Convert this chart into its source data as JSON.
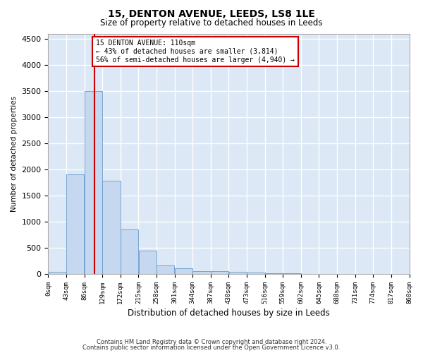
{
  "title1": "15, DENTON AVENUE, LEEDS, LS8 1LE",
  "title2": "Size of property relative to detached houses in Leeds",
  "xlabel": "Distribution of detached houses by size in Leeds",
  "ylabel": "Number of detached properties",
  "footer1": "Contains HM Land Registry data © Crown copyright and database right 2024.",
  "footer2": "Contains public sector information licensed under the Open Government Licence v3.0.",
  "property_label": "15 DENTON AVENUE: 110sqm",
  "pct_smaller": "43% of detached houses are smaller (3,814)",
  "pct_larger": "56% of semi-detached houses are larger (4,940)",
  "vline_color": "#cc0000",
  "bar_color": "#c5d8f0",
  "bar_edge_color": "#6699cc",
  "annotation_box_edge_color": "#cc0000",
  "bin_edges": [
    0,
    43,
    86,
    129,
    172,
    215,
    258,
    301,
    344,
    387,
    430,
    473,
    516,
    559,
    602,
    645,
    688,
    731,
    774,
    817,
    860
  ],
  "bar_heights": [
    40,
    1900,
    3500,
    1780,
    850,
    450,
    160,
    110,
    60,
    50,
    35,
    25,
    15,
    10,
    7,
    5,
    4,
    3,
    2,
    1
  ],
  "vline_x": 110,
  "ylim": [
    0,
    4600
  ],
  "yticks": [
    0,
    500,
    1000,
    1500,
    2000,
    2500,
    3000,
    3500,
    4000,
    4500
  ],
  "background_color": "#dce8f5",
  "fig_background": "#ffffff",
  "grid_color": "#ffffff"
}
